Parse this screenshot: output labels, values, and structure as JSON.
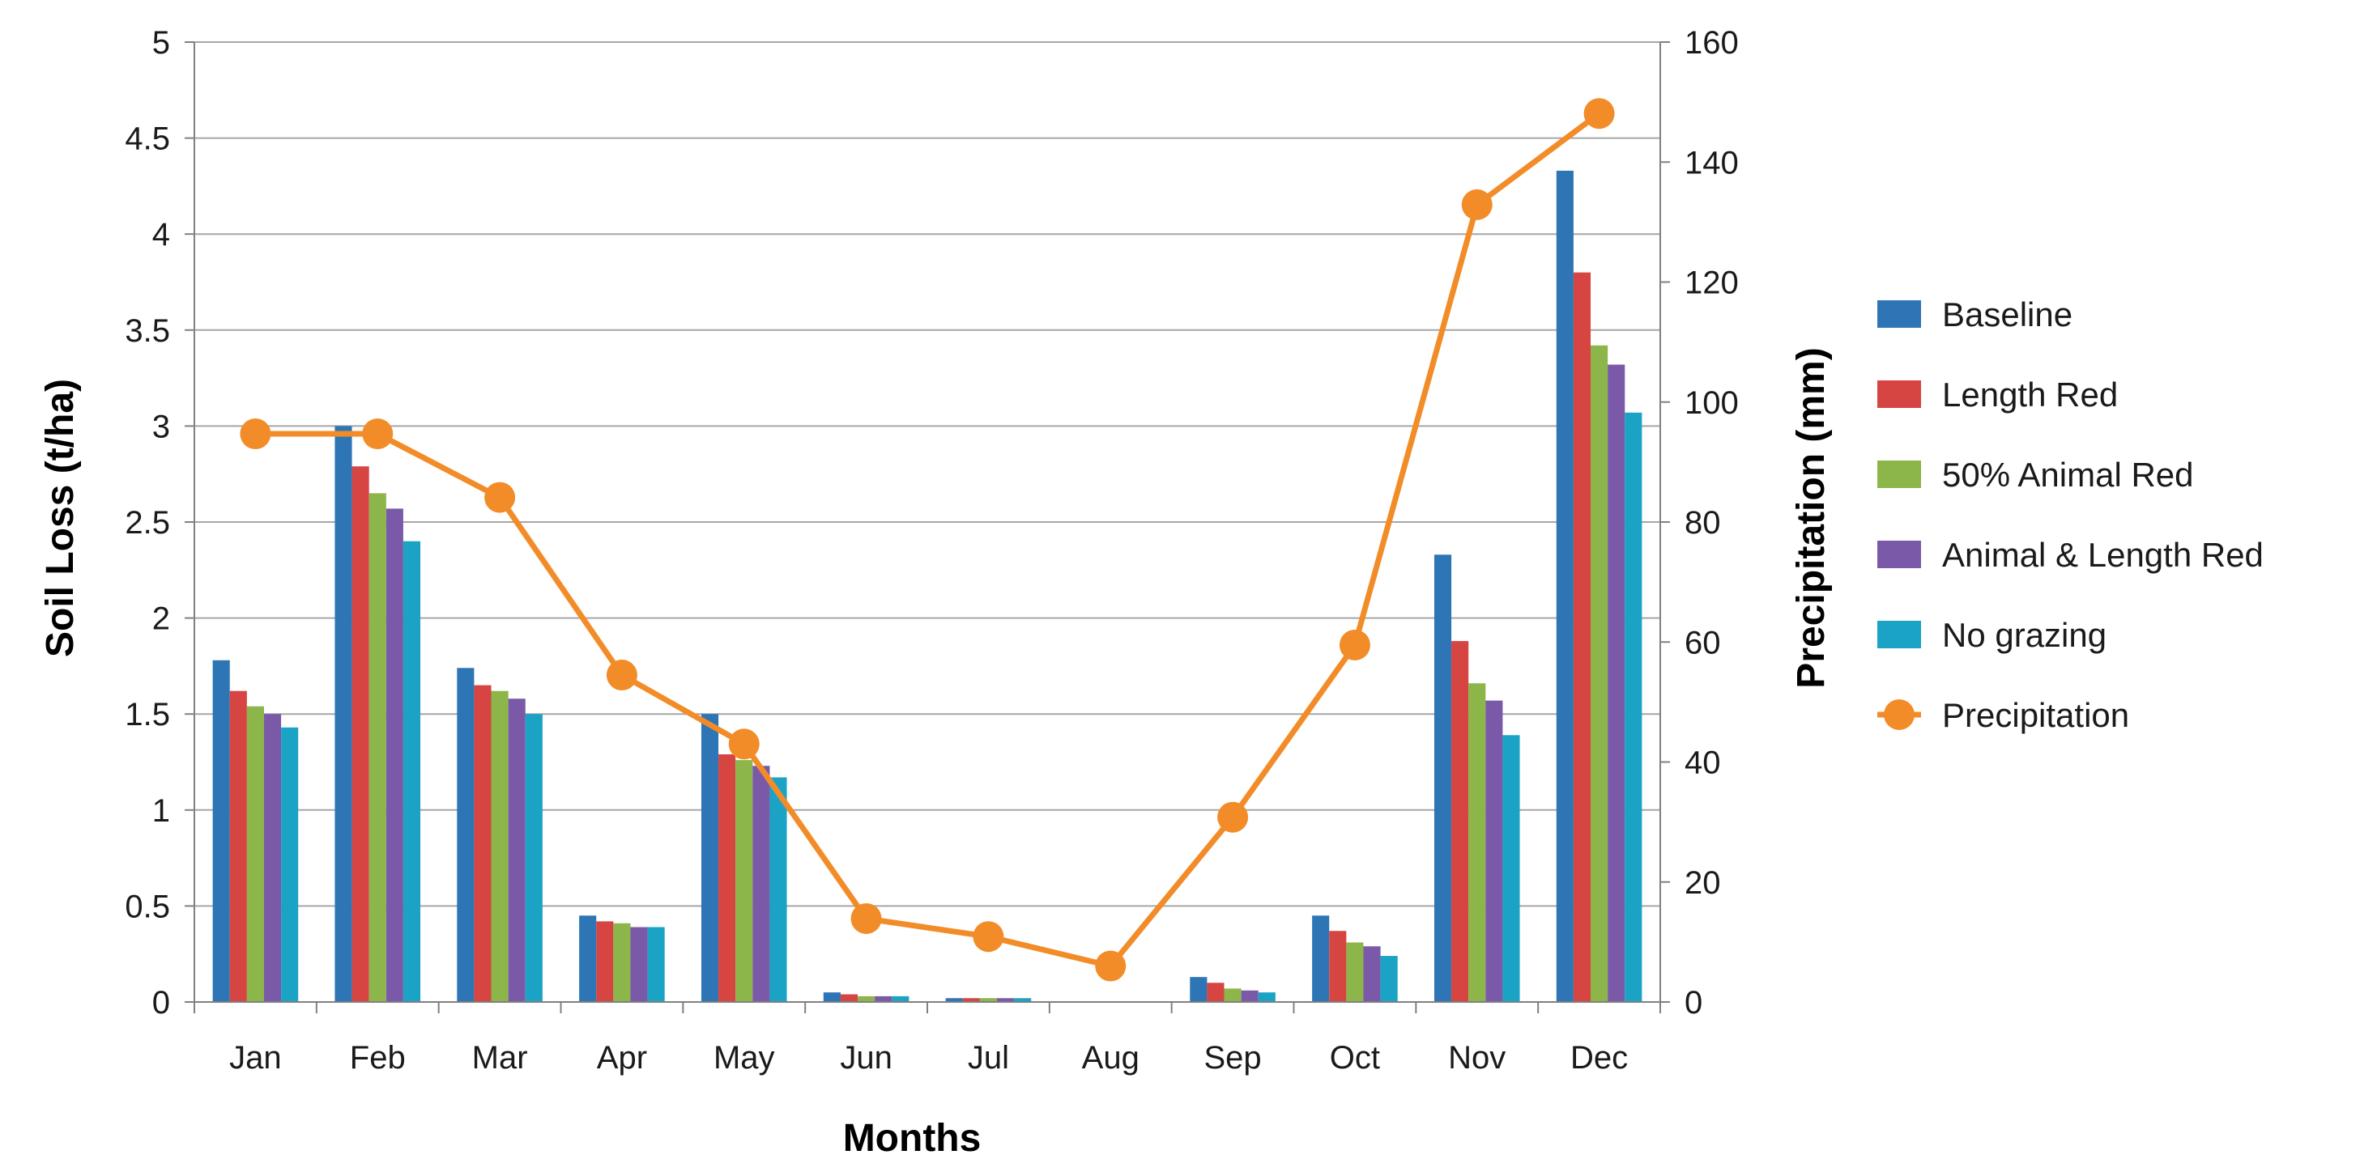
{
  "chart_data": {
    "type": "bar",
    "title": "",
    "categories": [
      "Jan",
      "Feb",
      "Mar",
      "Apr",
      "May",
      "Jun",
      "Jul",
      "Aug",
      "Sep",
      "Oct",
      "Nov",
      "Dec"
    ],
    "xlabel": "Months",
    "ylabel": "Soil Loss (t/ha)",
    "ylabel_right": "Precipitation (mm)",
    "ylim": [
      0,
      5
    ],
    "ylim_right": [
      0,
      160
    ],
    "yticks": [
      "0",
      "0.5",
      "1",
      "1.5",
      "2",
      "2.5",
      "3",
      "3.5",
      "4",
      "4.5",
      "5"
    ],
    "yticks_right": [
      "0",
      "20",
      "40",
      "60",
      "80",
      "100",
      "120",
      "140",
      "160"
    ],
    "grid": true,
    "legend_position": "right",
    "series": [
      {
        "name": "Baseline",
        "color": "#2E75B6",
        "values": [
          1.78,
          3.0,
          1.74,
          0.45,
          1.5,
          0.05,
          0.02,
          0.0,
          0.13,
          0.45,
          2.33,
          4.33
        ]
      },
      {
        "name": "Length Red",
        "color": "#D64541",
        "values": [
          1.62,
          2.79,
          1.65,
          0.42,
          1.29,
          0.04,
          0.02,
          0.0,
          0.1,
          0.37,
          1.88,
          3.8
        ]
      },
      {
        "name": "50% Animal Red",
        "color": "#8CB54A",
        "values": [
          1.54,
          2.65,
          1.62,
          0.41,
          1.26,
          0.03,
          0.02,
          0.0,
          0.07,
          0.31,
          1.66,
          3.42
        ]
      },
      {
        "name": "Animal & Length Red",
        "color": "#7A5AA8",
        "values": [
          1.5,
          2.57,
          1.58,
          0.39,
          1.23,
          0.03,
          0.02,
          0.0,
          0.06,
          0.29,
          1.57,
          3.32
        ]
      },
      {
        "name": "No grazing",
        "color": "#1BA3C6",
        "values": [
          1.43,
          2.4,
          1.5,
          0.39,
          1.17,
          0.03,
          0.02,
          0.0,
          0.05,
          0.24,
          1.39,
          3.07
        ]
      },
      {
        "name": "Precipitation",
        "type": "line",
        "axis": "right",
        "color": "#F28C28",
        "values": [
          94.7,
          94.7,
          84.1,
          54.5,
          43.0,
          13.9,
          10.9,
          6.0,
          30.8,
          59.5,
          132.9,
          148.1
        ]
      }
    ]
  }
}
